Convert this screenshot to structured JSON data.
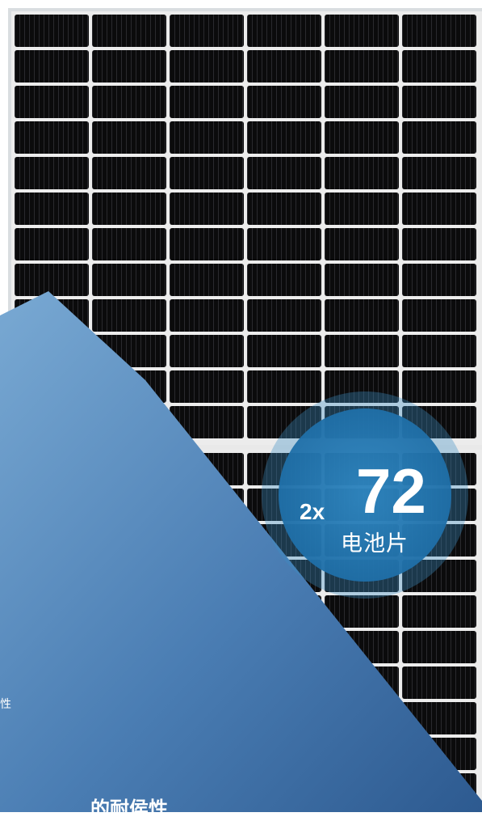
{
  "badge": {
    "multiplier": "2x",
    "number": "72",
    "label": "电池片"
  },
  "corner": {
    "fragment_small": "性",
    "fragment_large": "的耐侯性"
  },
  "colors": {
    "panel_frame": "#d9dde0",
    "cell": "#0a0a0b",
    "cell_line": "#2b2b2e",
    "busbar": "#e8e8e8",
    "overlay_light": "#6f9fcb",
    "overlay_dark": "#2f5f93",
    "badge_inner": "#2b7fb8",
    "badge_outer": "#3b8fc8"
  }
}
